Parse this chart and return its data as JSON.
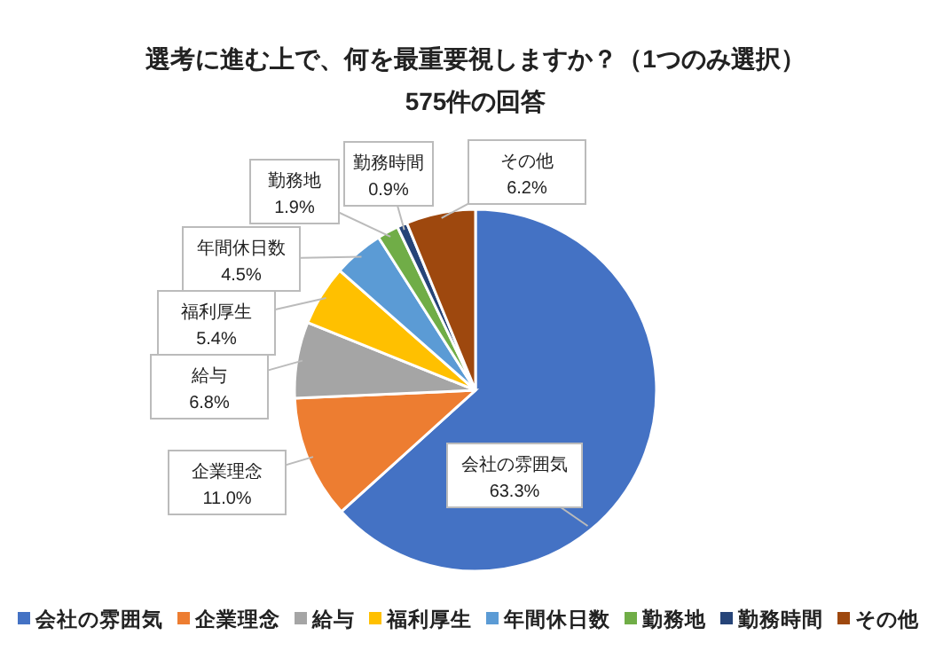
{
  "chart_data": {
    "type": "pie",
    "title": "選考に進む上で、何を最重要視しますか？（1つのみ選択）",
    "subtitle": "575件の回答",
    "categories": [
      "会社の雰囲気",
      "企業理念",
      "給与",
      "福利厚生",
      "年間休日数",
      "勤務地",
      "勤務時間",
      "その他"
    ],
    "values": [
      63.3,
      11.0,
      6.8,
      5.4,
      4.5,
      1.9,
      0.9,
      6.2
    ],
    "colors": [
      "#4472c4",
      "#ed7d31",
      "#a5a5a5",
      "#ffc000",
      "#5b9bd5",
      "#70ad47",
      "#264478",
      "#9e480e"
    ],
    "value_labels": [
      "63.3%",
      "11.0%",
      "6.8%",
      "5.4%",
      "4.5%",
      "1.9%",
      "0.9%",
      "6.2%"
    ],
    "legend": "bottom"
  }
}
